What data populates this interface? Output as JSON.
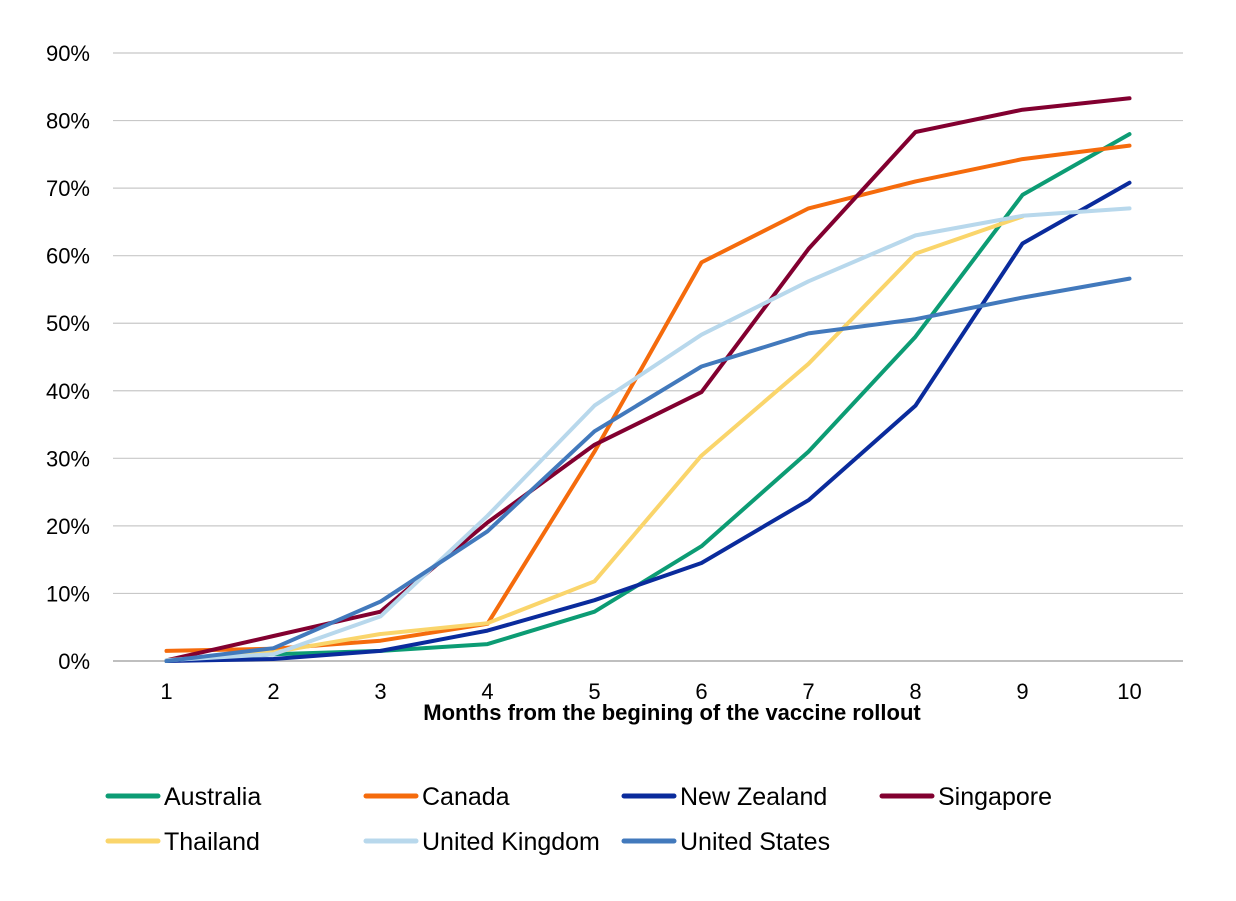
{
  "chart_data": {
    "type": "line",
    "xlabel": "Months from the begining of the vaccine rollout",
    "ylabel": "",
    "x": [
      1,
      2,
      3,
      4,
      5,
      6,
      7,
      8,
      9,
      10
    ],
    "ylim": [
      0,
      90
    ],
    "y_ticks": [
      "0%",
      "10%",
      "20%",
      "30%",
      "40%",
      "50%",
      "60%",
      "70%",
      "80%",
      "90%"
    ],
    "x_ticks": [
      "1",
      "2",
      "3",
      "4",
      "5",
      "6",
      "7",
      "8",
      "9",
      "10"
    ],
    "grid": "horizontal",
    "legend_position": "bottom",
    "series": [
      {
        "name": "Australia",
        "color": "#0c9c74",
        "values": [
          0,
          1,
          1.5,
          2.5,
          7.3,
          17,
          31,
          48,
          69,
          78
        ]
      },
      {
        "name": "Canada",
        "color": "#f56b0c",
        "values": [
          1.5,
          1.8,
          3,
          5.5,
          31,
          59,
          67,
          71,
          74.3,
          76.3
        ]
      },
      {
        "name": "New Zealand",
        "color": "#0a2b9c",
        "values": [
          0,
          0.3,
          1.5,
          4.5,
          9,
          14.5,
          23.8,
          37.8,
          61.8,
          70.8
        ]
      },
      {
        "name": "Singapore",
        "color": "#820030",
        "values": [
          0.1,
          3.7,
          7.3,
          20.5,
          32,
          39.8,
          61,
          78.3,
          81.6,
          83.3
        ]
      },
      {
        "name": "Thailand",
        "color": "#fad56b",
        "values": [
          0.1,
          1.3,
          4,
          5.6,
          11.8,
          30.4,
          44,
          60.3,
          65.8,
          null
        ]
      },
      {
        "name": "United Kingdom",
        "color": "#b8d8ec",
        "values": [
          0.1,
          1,
          6.6,
          21.5,
          37.8,
          48.3,
          56.2,
          63,
          65.9,
          67
        ]
      },
      {
        "name": "United States",
        "color": "#4279bc",
        "values": [
          0,
          1.9,
          8.8,
          19.2,
          34,
          43.6,
          48.5,
          50.6,
          53.8,
          56.6
        ]
      }
    ]
  }
}
